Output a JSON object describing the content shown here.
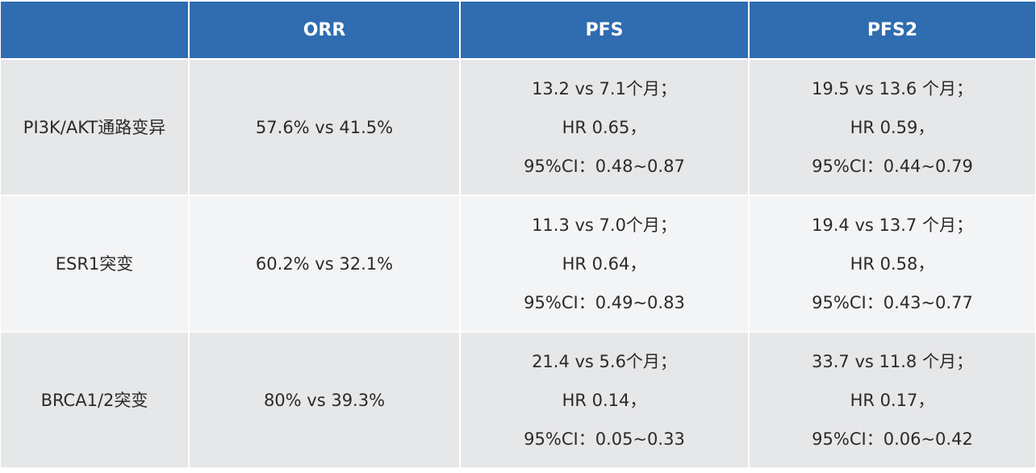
{
  "colors": {
    "header_bg": "#2f6cb0",
    "row_odd": "#e6e7e9",
    "row_even": "#f3f4f6"
  },
  "headers": [
    "",
    "ORR",
    "PFS",
    "PFS2"
  ],
  "rows": [
    {
      "label": "PI3K/AKT通路变异",
      "orr": "57.6% vs 41.5%",
      "pfs": [
        "13.2 vs 7.1个月；",
        "HR 0.65，",
        "95%CI：0.48~0.87"
      ],
      "pfs2": [
        "19.5 vs 13.6 个月；",
        "HR 0.59，",
        "95%CI：0.44~0.79"
      ]
    },
    {
      "label": "ESR1突变",
      "orr": "60.2% vs 32.1%",
      "pfs": [
        "11.3 vs 7.0个月；",
        "HR 0.64，",
        "95%CI：0.49~0.83"
      ],
      "pfs2": [
        "19.4 vs 13.7 个月；",
        "HR 0.58，",
        "95%CI：0.43~0.77"
      ]
    },
    {
      "label": "BRCA1/2突变",
      "orr": "80% vs 39.3%",
      "pfs": [
        "21.4 vs 5.6个月；",
        "HR 0.14，",
        "95%CI：0.05~0.33"
      ],
      "pfs2": [
        "33.7 vs 11.8 个月；",
        "HR 0.17，",
        "95%CI：0.06~0.42"
      ]
    }
  ]
}
